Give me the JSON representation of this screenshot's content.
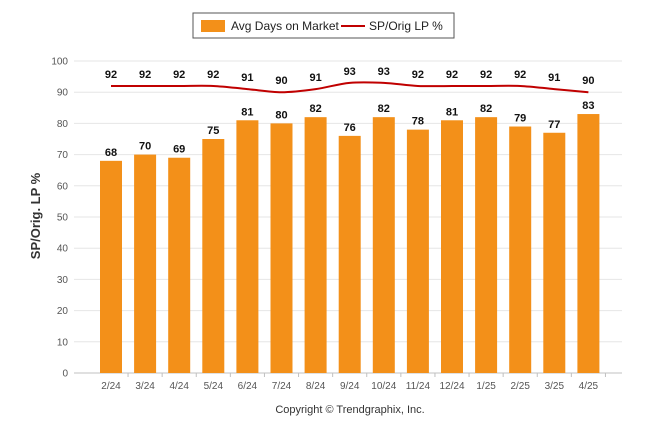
{
  "chart_data": {
    "type": "bar",
    "categories": [
      "2/24",
      "3/24",
      "4/24",
      "5/24",
      "6/24",
      "7/24",
      "8/24",
      "9/24",
      "10/24",
      "11/24",
      "12/24",
      "1/25",
      "2/25",
      "3/25",
      "4/25"
    ],
    "series": [
      {
        "name": "Avg Days on Market",
        "type": "bar",
        "color": "#f39019",
        "values": [
          68,
          70,
          69,
          75,
          81,
          80,
          82,
          76,
          82,
          78,
          81,
          82,
          79,
          77,
          83
        ]
      },
      {
        "name": "SP/Orig LP %",
        "type": "line",
        "color": "#c00000",
        "values": [
          92,
          92,
          92,
          92,
          91,
          90,
          91,
          93,
          93,
          92,
          92,
          92,
          92,
          91,
          90
        ]
      }
    ],
    "ylabel": "SP/Orig. LP %",
    "ylim": [
      0,
      100
    ],
    "yticks": [
      0,
      10,
      20,
      30,
      40,
      50,
      60,
      70,
      80,
      90,
      100
    ],
    "grid": true,
    "legend_position": "top-center"
  },
  "credit": "Copyright © Trendgraphix, Inc."
}
